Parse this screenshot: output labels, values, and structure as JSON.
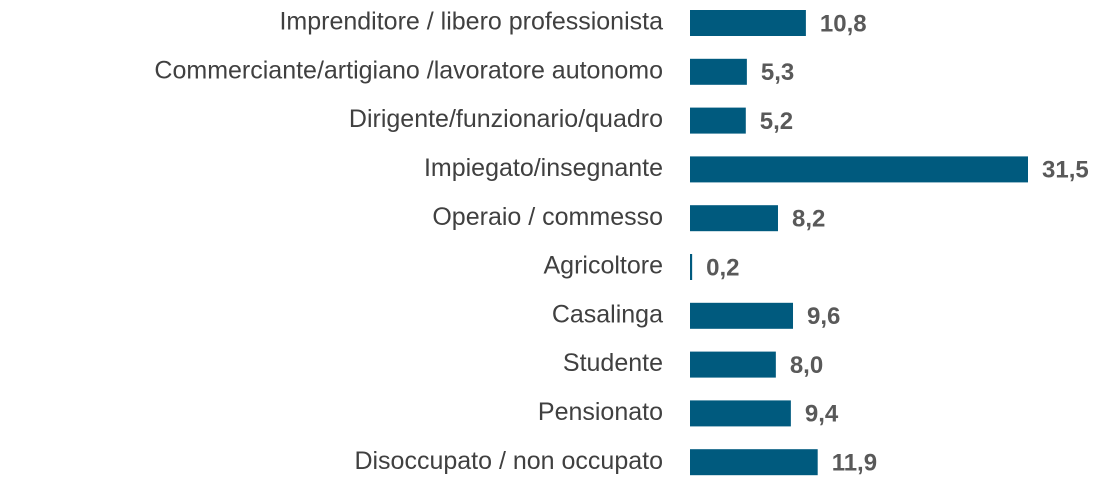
{
  "chart_data": {
    "type": "barh",
    "categories": [
      "Imprenditore / libero professionista",
      "Commerciante/artigiano /lavoratore autonomo",
      "Dirigente/funzionario/quadro",
      "Impiegato/insegnante",
      "Operaio / commesso",
      "Agricoltore",
      "Casalinga",
      "Studente",
      "Pensionato",
      "Disoccupato / non occupato"
    ],
    "values": [
      10.8,
      5.3,
      5.2,
      31.5,
      8.2,
      0.2,
      9.6,
      8.0,
      9.4,
      11.9
    ],
    "value_labels": [
      "10,8",
      "5,3",
      "5,2",
      "31,5",
      "8,2",
      "0,2",
      "9,6",
      "8,0",
      "9,4",
      "11,9"
    ],
    "color": "#005a7e"
  }
}
